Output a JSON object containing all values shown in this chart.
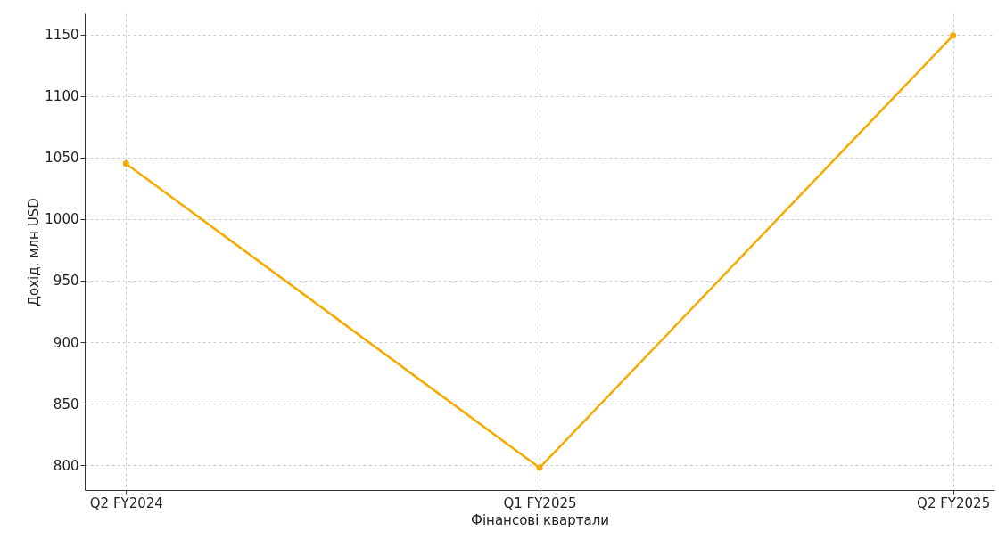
{
  "chart_data": {
    "type": "line",
    "xlabel": "Фінансові квартали",
    "ylabel": "Дохід, млн USD",
    "categories": [
      "Q2 FY2024",
      "Q1 FY2025",
      "Q2 FY2025"
    ],
    "series": [
      {
        "color": "#f5ab00",
        "values": [
          1045,
          798,
          1149
        ]
      }
    ],
    "ylim": [
      780,
      1167
    ],
    "yticks": [
      800,
      850,
      900,
      950,
      1000,
      1050,
      1100,
      1150
    ],
    "grid": true,
    "marker": "circle",
    "line_style": "solid"
  }
}
